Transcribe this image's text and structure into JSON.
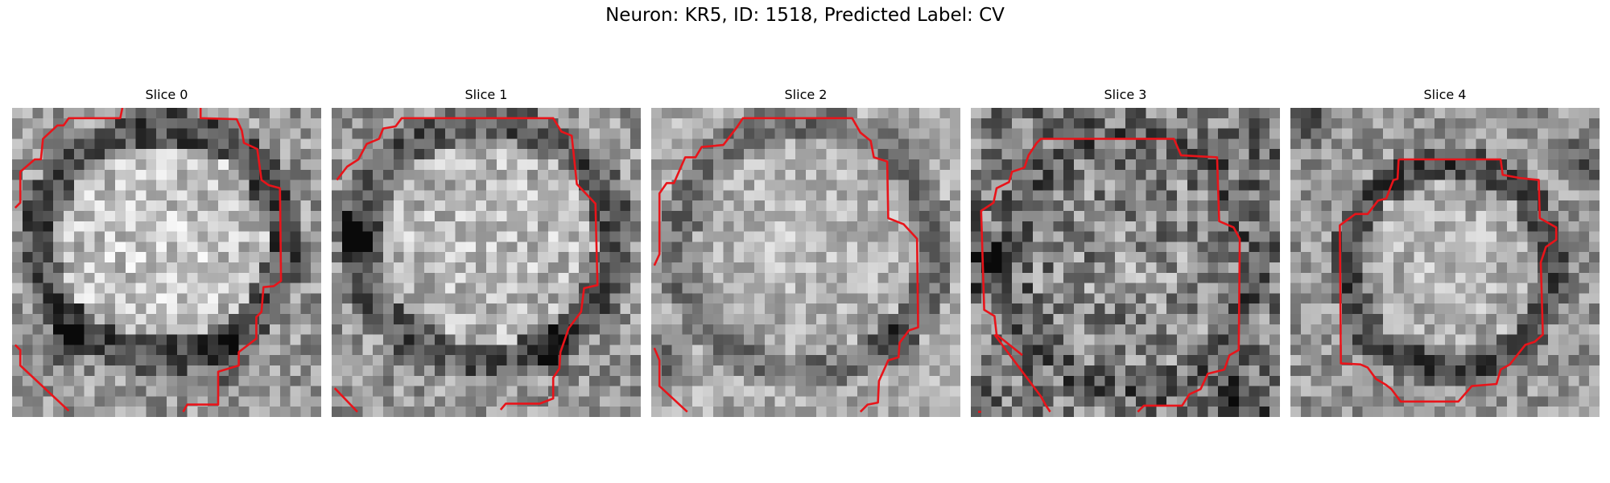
{
  "figure": {
    "title": "Neuron: KR5, ID: 1518, Predicted Label: CV"
  },
  "panels": [
    {
      "title": "Slice 0"
    },
    {
      "title": "Slice 1"
    },
    {
      "title": "Slice 2"
    },
    {
      "title": "Slice 3"
    },
    {
      "title": "Slice 4"
    }
  ],
  "colors": {
    "contour": "#e8141a",
    "background": "#ffffff"
  }
}
